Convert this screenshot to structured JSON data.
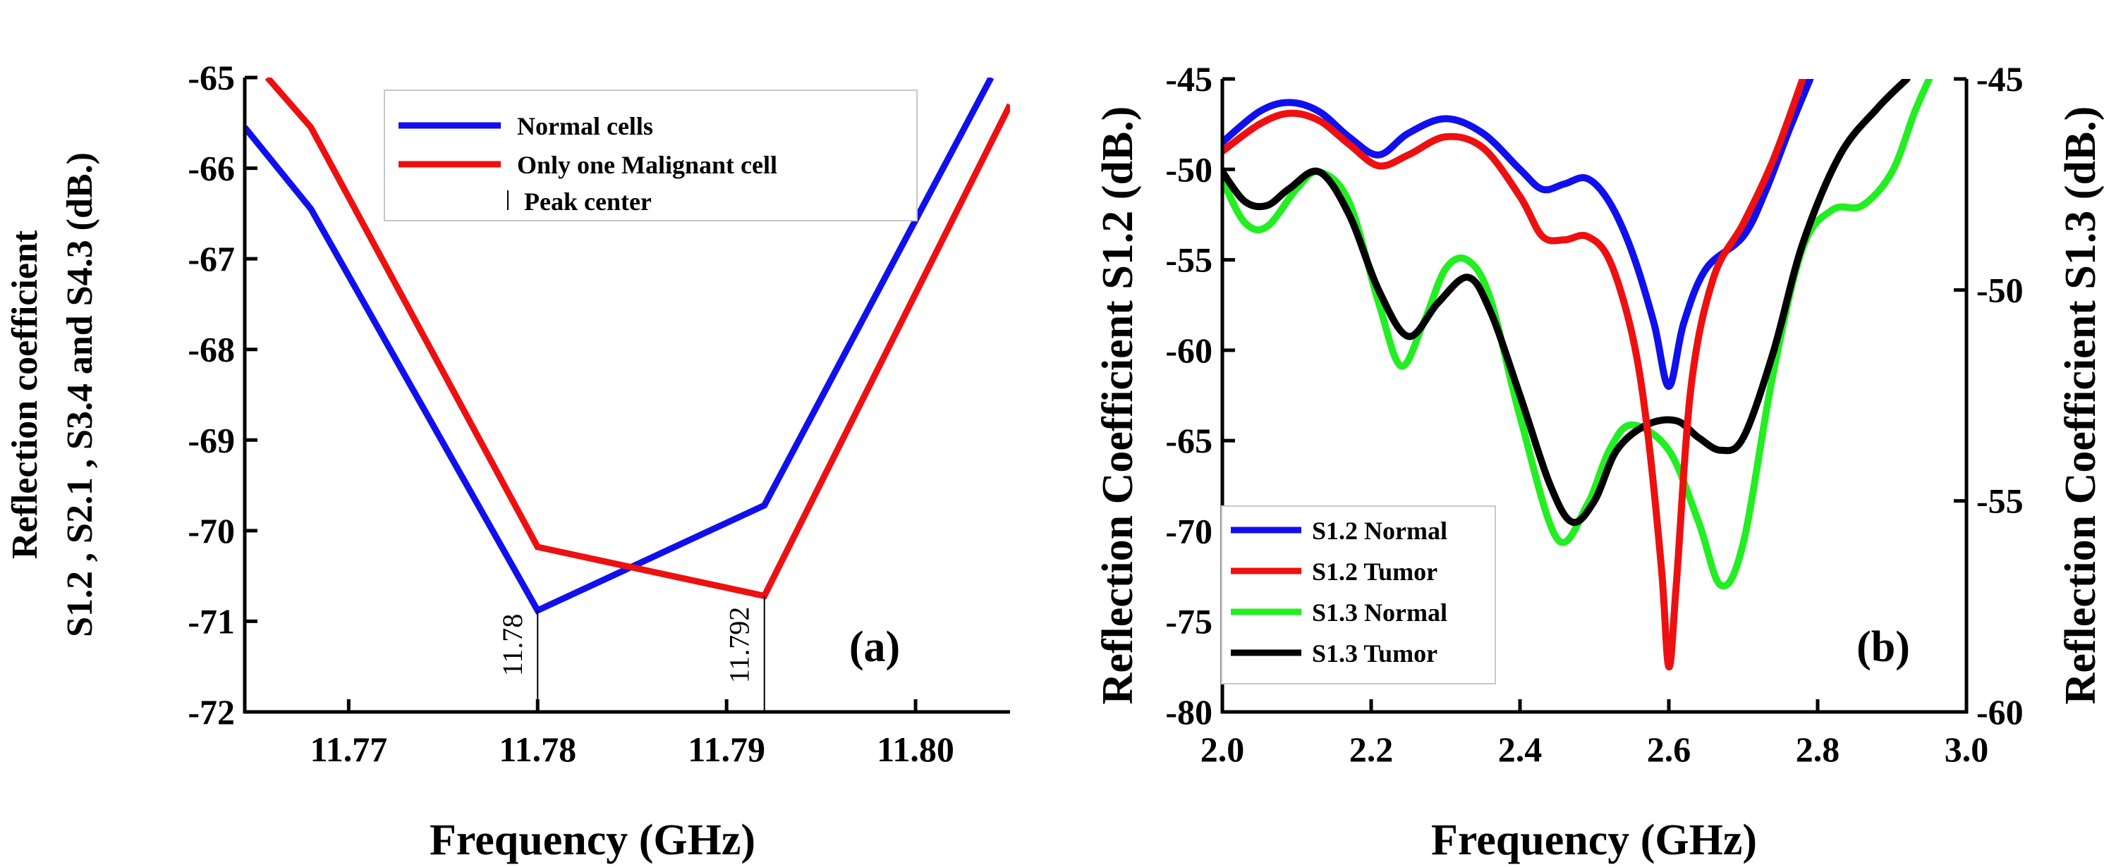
{
  "chart_data": [
    {
      "type": "line",
      "panel_label": "(a)",
      "xlabel": "Frequency (GHz)",
      "ylabel_lines": [
        "Reflection coefficient",
        "S1.2 , S2.1 , S3.4 and S4.3 (dB.)"
      ],
      "xlim": [
        11.7645,
        11.805
      ],
      "ylim": [
        -72,
        -65
      ],
      "xticks": [
        11.77,
        11.78,
        11.79,
        11.8
      ],
      "xtick_labels": [
        "11.77",
        "11.78",
        "11.79",
        "11.80"
      ],
      "yticks": [
        -65,
        -66,
        -67,
        -68,
        -69,
        -70,
        -71,
        -72
      ],
      "ytick_labels": [
        "-65",
        "-66",
        "-67",
        "-68",
        "-69",
        "-70",
        "-71",
        "-72"
      ],
      "series": [
        {
          "name": "Normal cells",
          "color": "#1010ee",
          "x": [
            11.7645,
            11.768,
            11.78,
            11.792,
            11.804
          ],
          "y": [
            -65.55,
            -66.45,
            -70.88,
            -69.72,
            -65.0
          ]
        },
        {
          "name": "Only one Malignant cell",
          "color": "#ee1010",
          "x": [
            11.7657,
            11.768,
            11.78,
            11.792,
            11.805
          ],
          "y": [
            -65.0,
            -65.55,
            -70.18,
            -70.72,
            -65.3
          ]
        }
      ],
      "peak_markers": [
        {
          "x": 11.78,
          "label": "11.78",
          "y_top": -70.88
        },
        {
          "x": 11.792,
          "label": "11.792",
          "y_top": -70.72
        }
      ],
      "legend": {
        "placement": "top-center",
        "entries": [
          "Normal cells",
          "Only one Malignant cell",
          "Peak center"
        ]
      }
    },
    {
      "type": "line",
      "panel_label": "(b)",
      "xlabel": "Frequency (GHz)",
      "ylabel_left": "Reflection Coefficient S1.2 (dB.)",
      "ylabel_right": "Reflection Coefficient S1.3 (dB.)",
      "xlim": [
        2.0,
        3.0
      ],
      "ylim_left": [
        -80,
        -45
      ],
      "ylim_right": [
        -60,
        -45
      ],
      "xticks": [
        2.0,
        2.2,
        2.4,
        2.6,
        2.8,
        3.0
      ],
      "xtick_labels": [
        "2.0",
        "2.2",
        "2.4",
        "2.6",
        "2.8",
        "3.0"
      ],
      "yticks_left": [
        -45,
        -50,
        -55,
        -60,
        -65,
        -70,
        -75,
        -80
      ],
      "ytick_labels_left": [
        "-45",
        "-50",
        "-55",
        "-60",
        "-65",
        "-70",
        "-75",
        "-80"
      ],
      "yticks_right": [
        -45,
        -50,
        -55,
        -60
      ],
      "ytick_labels_right": [
        "-45",
        "-50",
        "-55",
        "-60"
      ],
      "series": [
        {
          "name": "S1.2 Normal",
          "color": "#1010ee",
          "axis": "left",
          "x": [
            2.0,
            2.05,
            2.09,
            2.13,
            2.17,
            2.21,
            2.25,
            2.3,
            2.35,
            2.4,
            2.43,
            2.46,
            2.49,
            2.52,
            2.55,
            2.58,
            2.6,
            2.62,
            2.65,
            2.7,
            2.73,
            2.76,
            2.79
          ],
          "y": [
            -48.5,
            -46.8,
            -46.3,
            -46.8,
            -48.2,
            -49.2,
            -48.0,
            -47.2,
            -48.0,
            -50.0,
            -51.1,
            -50.8,
            -50.5,
            -51.8,
            -54.5,
            -58.5,
            -62.0,
            -58.5,
            -55.5,
            -53.7,
            -51.2,
            -48.0,
            -45.0
          ]
        },
        {
          "name": "S1.2 Tumor",
          "color": "#ee1010",
          "axis": "left",
          "x": [
            2.0,
            2.05,
            2.09,
            2.13,
            2.17,
            2.21,
            2.25,
            2.3,
            2.35,
            2.4,
            2.43,
            2.46,
            2.49,
            2.52,
            2.55,
            2.57,
            2.59,
            2.6,
            2.61,
            2.63,
            2.66,
            2.7,
            2.74,
            2.78
          ],
          "y": [
            -49.0,
            -47.5,
            -46.9,
            -47.3,
            -48.6,
            -49.8,
            -49.2,
            -48.2,
            -48.8,
            -51.5,
            -53.7,
            -53.9,
            -53.7,
            -55.0,
            -59.0,
            -64.0,
            -72.0,
            -77.5,
            -73.0,
            -62.0,
            -56.0,
            -53.0,
            -49.5,
            -45.0
          ]
        },
        {
          "name": "S1.3 Normal",
          "color": "#22ee22",
          "axis": "right",
          "x": [
            2.0,
            2.03,
            2.06,
            2.1,
            2.13,
            2.17,
            2.21,
            2.24,
            2.27,
            2.3,
            2.33,
            2.36,
            2.4,
            2.45,
            2.49,
            2.52,
            2.55,
            2.6,
            2.64,
            2.67,
            2.7,
            2.74,
            2.78,
            2.82,
            2.86,
            2.9,
            2.93,
            2.95
          ],
          "y": [
            -47.4,
            -48.4,
            -48.5,
            -47.6,
            -47.2,
            -47.9,
            -50.3,
            -51.8,
            -50.8,
            -49.5,
            -49.3,
            -50.2,
            -53.0,
            -55.9,
            -55.1,
            -53.8,
            -53.2,
            -53.8,
            -55.5,
            -57.0,
            -56.0,
            -52.0,
            -49.0,
            -48.1,
            -48.0,
            -47.2,
            -45.8,
            -45.0
          ]
        },
        {
          "name": "S1.3 Tumor",
          "color": "#000000",
          "axis": "right",
          "x": [
            2.0,
            2.03,
            2.06,
            2.09,
            2.13,
            2.17,
            2.21,
            2.25,
            2.29,
            2.33,
            2.36,
            2.4,
            2.44,
            2.47,
            2.5,
            2.53,
            2.57,
            2.61,
            2.64,
            2.67,
            2.7,
            2.74,
            2.78,
            2.83,
            2.88,
            2.92
          ],
          "y": [
            -47.2,
            -47.9,
            -48.0,
            -47.6,
            -47.2,
            -48.2,
            -50.0,
            -51.1,
            -50.3,
            -49.7,
            -50.5,
            -52.5,
            -54.6,
            -55.5,
            -55.0,
            -53.8,
            -53.2,
            -53.1,
            -53.5,
            -53.8,
            -53.5,
            -51.5,
            -48.9,
            -46.8,
            -45.7,
            -45.0
          ]
        }
      ],
      "legend": {
        "placement": "bottom-left",
        "entries": [
          "S1.2 Normal",
          "S1.2 Tumor",
          "S1.3 Normal",
          "S1.3 Tumor"
        ]
      }
    }
  ]
}
